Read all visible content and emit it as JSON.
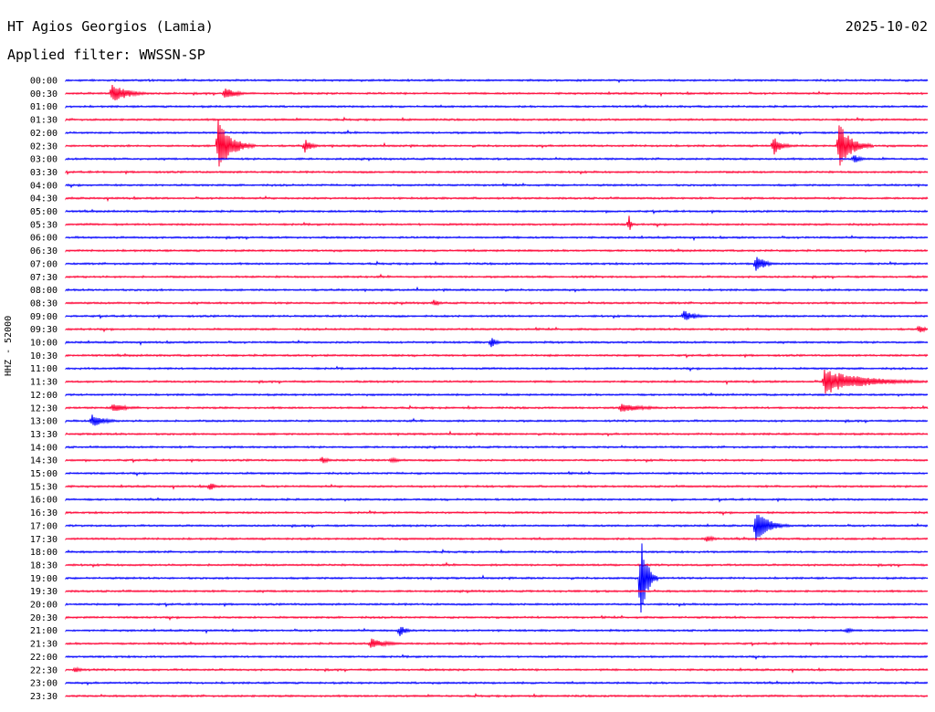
{
  "header": {
    "station": "HT Agios Georgios (Lamia)",
    "date": "2025-10-02",
    "filter": "Applied filter: WWSSN-SP",
    "channel": "HHZ - 52000"
  },
  "chart_data": {
    "type": "line",
    "title": "HT Agios Georgios (Lamia)",
    "subtitle": "Applied filter: WWSSN-SP",
    "ylabel": "HHZ - 52000",
    "xlabel": "",
    "x_range_minutes": [
      0,
      30
    ],
    "grid": false,
    "legend": "none",
    "colors": [
      "#0000ff",
      "#ff0033"
    ],
    "rows": [
      "00:00",
      "00:30",
      "01:00",
      "01:30",
      "02:00",
      "02:30",
      "03:00",
      "03:30",
      "04:00",
      "04:30",
      "05:00",
      "05:30",
      "06:00",
      "06:30",
      "07:00",
      "07:30",
      "08:00",
      "08:30",
      "09:00",
      "09:30",
      "10:00",
      "10:30",
      "11:00",
      "11:30",
      "12:00",
      "12:30",
      "13:00",
      "13:30",
      "14:00",
      "14:30",
      "15:00",
      "15:30",
      "16:00",
      "16:30",
      "17:00",
      "17:30",
      "18:00",
      "18:30",
      "19:00",
      "19:30",
      "20:00",
      "20:30",
      "21:00",
      "21:30",
      "22:00",
      "22:30",
      "23:00",
      "23:30"
    ],
    "events": [
      {
        "row": 1,
        "minute": 1.6,
        "amplitude": 12,
        "duration": 1.5
      },
      {
        "row": 1,
        "minute": 5.5,
        "amplitude": 7,
        "duration": 1.2
      },
      {
        "row": 5,
        "minute": 5.3,
        "amplitude": 30,
        "duration": 1.3
      },
      {
        "row": 5,
        "minute": 8.3,
        "amplitude": 9,
        "duration": 0.7
      },
      {
        "row": 5,
        "minute": 24.6,
        "amplitude": 12,
        "duration": 0.8
      },
      {
        "row": 5,
        "minute": 26.9,
        "amplitude": 28,
        "duration": 1.2
      },
      {
        "row": 6,
        "minute": 27.4,
        "amplitude": 6,
        "duration": 0.7
      },
      {
        "row": 11,
        "minute": 19.6,
        "amplitude": 11,
        "duration": 0.2
      },
      {
        "row": 14,
        "minute": 24.0,
        "amplitude": 12,
        "duration": 0.8
      },
      {
        "row": 17,
        "minute": 12.8,
        "amplitude": 4,
        "duration": 0.6
      },
      {
        "row": 18,
        "minute": 21.5,
        "amplitude": 7,
        "duration": 1.1
      },
      {
        "row": 19,
        "minute": 29.7,
        "amplitude": 6,
        "duration": 0.5
      },
      {
        "row": 20,
        "minute": 14.8,
        "amplitude": 7,
        "duration": 0.5
      },
      {
        "row": 23,
        "minute": 26.4,
        "amplitude": 14,
        "duration": 4.0
      },
      {
        "row": 25,
        "minute": 1.6,
        "amplitude": 5,
        "duration": 1.5
      },
      {
        "row": 25,
        "minute": 19.3,
        "amplitude": 5,
        "duration": 2.4
      },
      {
        "row": 26,
        "minute": 0.9,
        "amplitude": 8,
        "duration": 1.2
      },
      {
        "row": 29,
        "minute": 8.9,
        "amplitude": 6,
        "duration": 0.5
      },
      {
        "row": 29,
        "minute": 11.3,
        "amplitude": 3,
        "duration": 1.0
      },
      {
        "row": 31,
        "minute": 5.0,
        "amplitude": 7,
        "duration": 0.4
      },
      {
        "row": 34,
        "minute": 24.0,
        "amplitude": 20,
        "duration": 1.2
      },
      {
        "row": 35,
        "minute": 22.3,
        "amplitude": 4,
        "duration": 0.8
      },
      {
        "row": 38,
        "minute": 20.0,
        "amplitude": 55,
        "duration": 0.6
      },
      {
        "row": 42,
        "minute": 11.6,
        "amplitude": 8,
        "duration": 0.6
      },
      {
        "row": 42,
        "minute": 27.2,
        "amplitude": 4,
        "duration": 0.5
      },
      {
        "row": 43,
        "minute": 10.6,
        "amplitude": 6,
        "duration": 1.6
      },
      {
        "row": 45,
        "minute": 0.3,
        "amplitude": 4,
        "duration": 0.7
      }
    ]
  }
}
